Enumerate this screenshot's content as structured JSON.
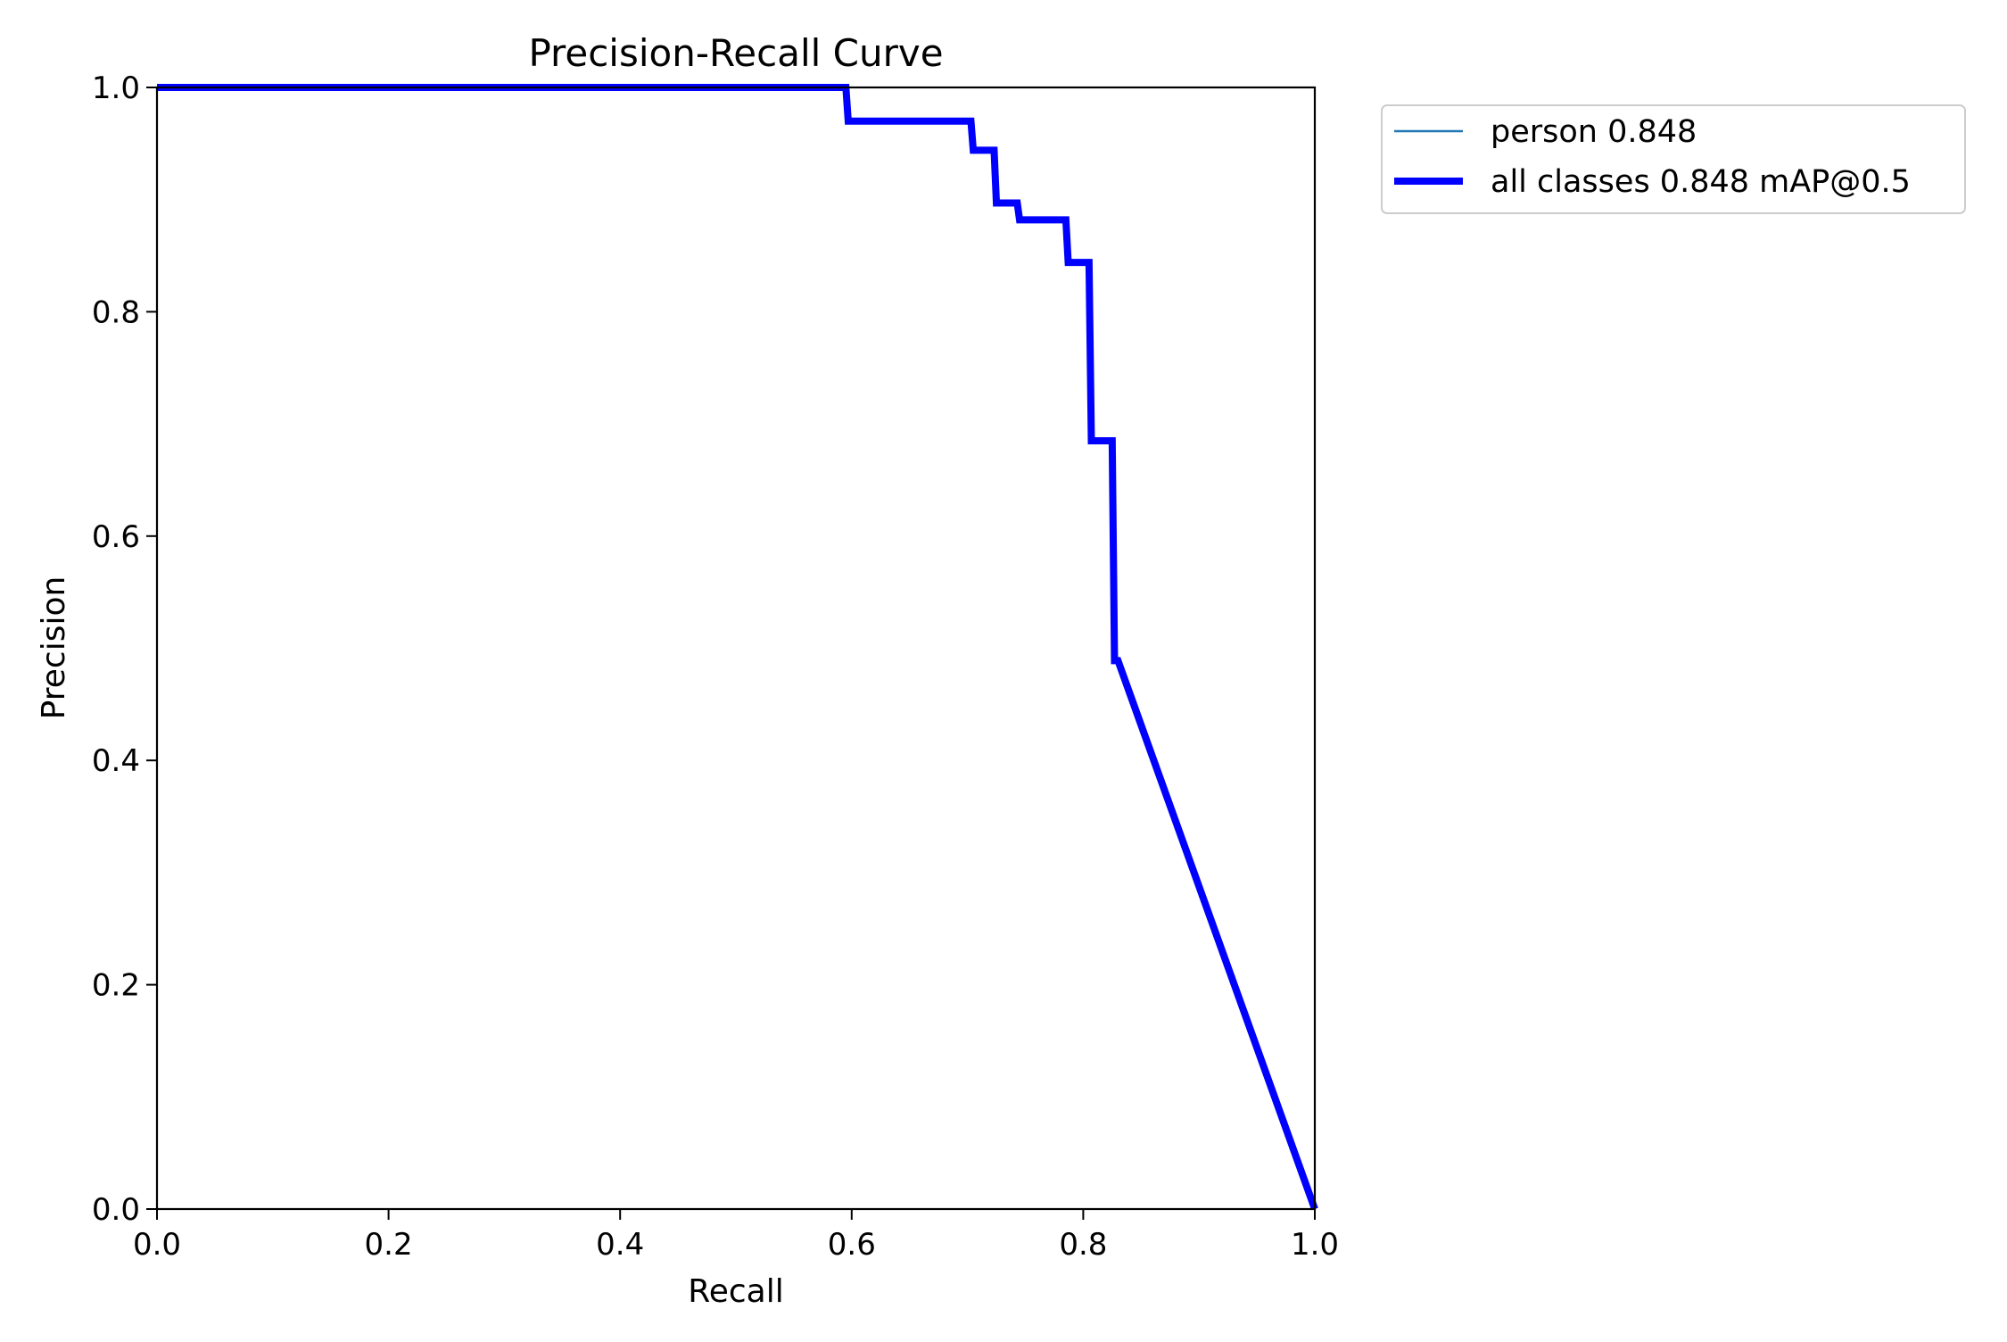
{
  "chart_data": {
    "type": "line",
    "title": "Precision-Recall Curve",
    "xlabel": "Recall",
    "ylabel": "Precision",
    "xlim": [
      0.0,
      1.0
    ],
    "ylim": [
      0.0,
      1.0
    ],
    "xticks": [
      "0.0",
      "0.2",
      "0.4",
      "0.6",
      "0.8",
      "1.0"
    ],
    "yticks": [
      "0.0",
      "0.2",
      "0.4",
      "0.6",
      "0.8",
      "1.0"
    ],
    "grid": false,
    "legend_position": "outside-top-right",
    "series": [
      {
        "name": "person 0.848",
        "color": "#1f77b4",
        "style": "thin",
        "x": [
          0.0,
          0.595,
          0.597,
          0.703,
          0.705,
          0.723,
          0.725,
          0.743,
          0.745,
          0.785,
          0.787,
          0.805,
          0.807,
          0.825,
          0.827,
          0.83,
          1.0
        ],
        "y": [
          1.0,
          1.0,
          0.97,
          0.97,
          0.944,
          0.944,
          0.897,
          0.897,
          0.882,
          0.882,
          0.844,
          0.844,
          0.685,
          0.685,
          0.489,
          0.489,
          0.0
        ]
      },
      {
        "name": "all classes 0.848 mAP@0.5",
        "color": "#0000ff",
        "style": "thick",
        "x": [
          0.0,
          0.595,
          0.597,
          0.703,
          0.705,
          0.723,
          0.725,
          0.743,
          0.745,
          0.785,
          0.787,
          0.805,
          0.807,
          0.825,
          0.827,
          0.83,
          1.0
        ],
        "y": [
          1.0,
          1.0,
          0.97,
          0.97,
          0.944,
          0.944,
          0.897,
          0.897,
          0.882,
          0.882,
          0.844,
          0.844,
          0.685,
          0.685,
          0.489,
          0.489,
          0.0
        ]
      }
    ]
  }
}
